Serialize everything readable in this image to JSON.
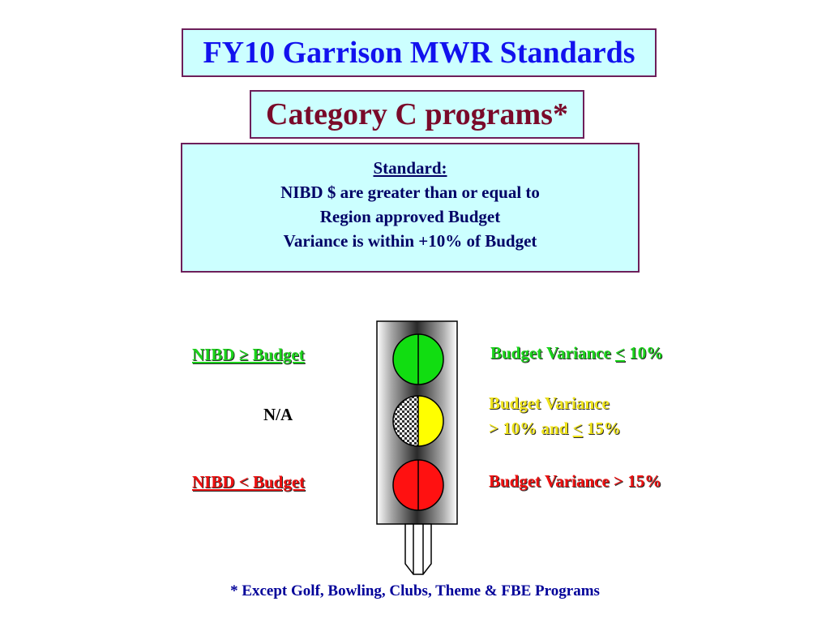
{
  "title": "FY10 Garrison MWR Standards",
  "subtitle": "Category C programs*",
  "standard": {
    "heading": "Standard:",
    "lines": [
      "NIBD $ are greater than or equal to",
      "Region approved Budget",
      "Variance is within +10% of Budget"
    ]
  },
  "left_labels": {
    "green": "NIBD ≥ Budget",
    "yellow": "N/A",
    "red": "NIBD < Budget"
  },
  "right_labels": {
    "green_prefix": "Budget Variance ",
    "green_symbol": "<",
    "green_suffix": " 10%",
    "yellow_line1": "Budget Variance",
    "yellow_line2_prefix": "> 10% and ",
    "yellow_line2_symbol": "<",
    "yellow_line2_suffix": " 15%",
    "red": "Budget Variance > 15%"
  },
  "footnote": "* Except Golf, Bowling, Clubs, Theme & FBE Programs",
  "colors": {
    "green_light": "#11dd11",
    "yellow_light": "#ffff00",
    "red_light": "#ff1111",
    "box_background": "#ccffff",
    "title_text": "#1212ee"
  }
}
